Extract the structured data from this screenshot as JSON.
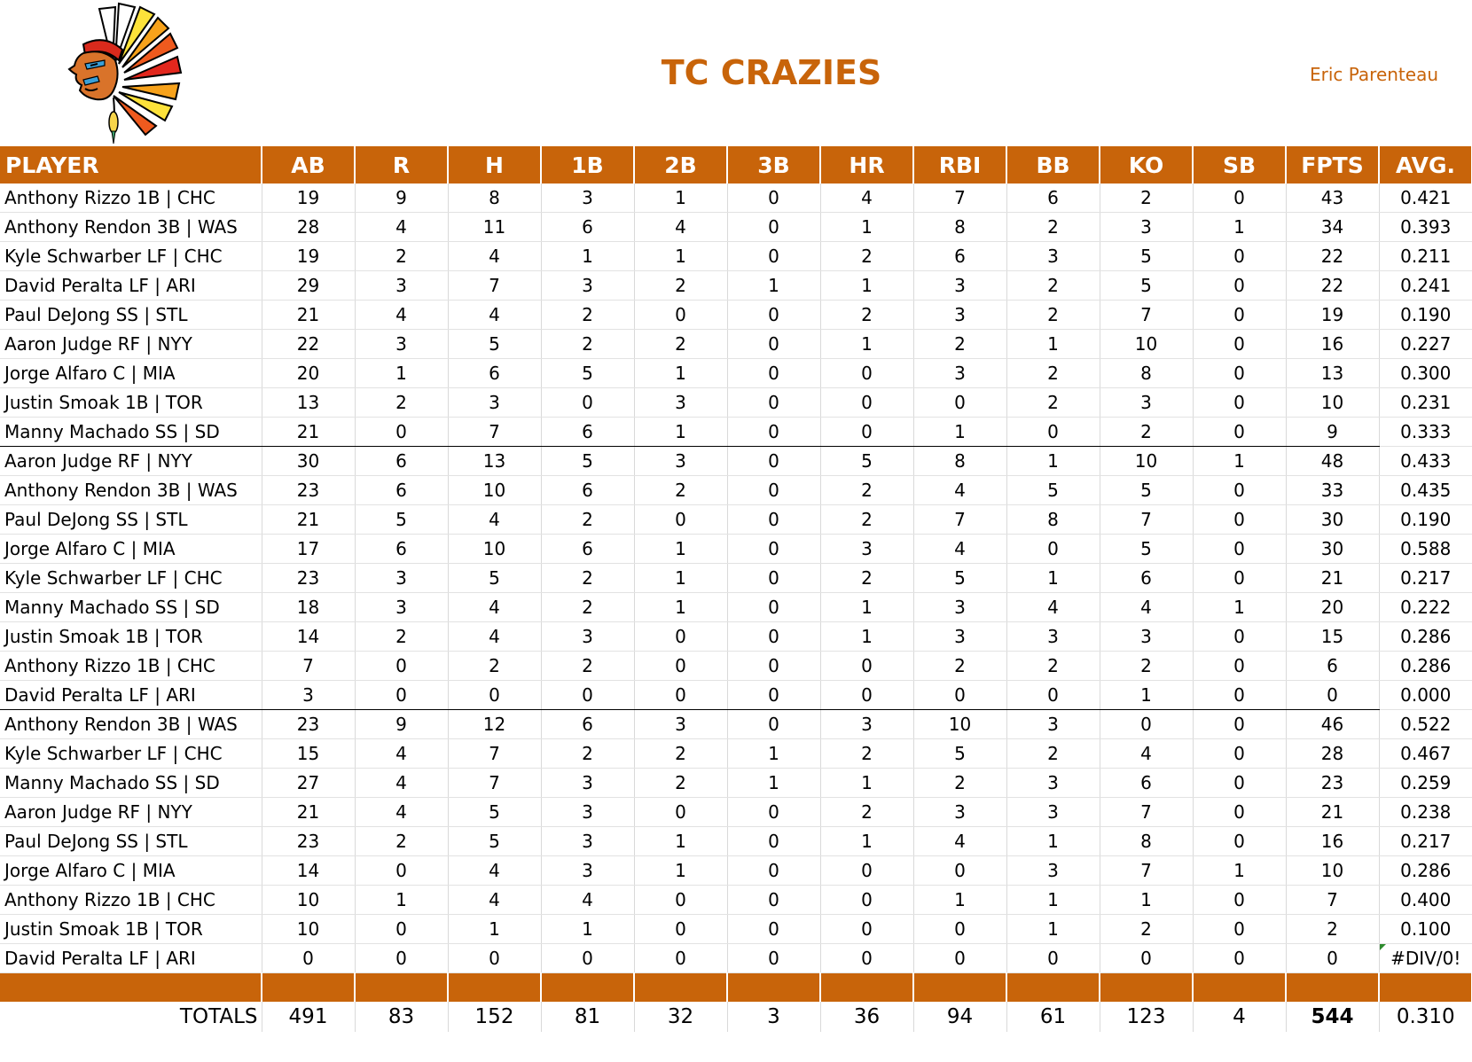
{
  "header": {
    "title": "TC CRAZIES",
    "owner": "Eric Parenteau"
  },
  "columns": [
    "PLAYER",
    "AB",
    "R",
    "H",
    "1B",
    "2B",
    "3B",
    "HR",
    "RBI",
    "BB",
    "KO",
    "SB",
    "FPTS",
    "AVG."
  ],
  "rows": [
    {
      "player": "Anthony Rizzo 1B | CHC",
      "ab": "19",
      "r": "9",
      "h": "8",
      "b1": "3",
      "b2": "1",
      "b3": "0",
      "hr": "4",
      "rbi": "7",
      "bb": "6",
      "ko": "2",
      "sb": "0",
      "fpts": "43",
      "avg": "0.421"
    },
    {
      "player": "Anthony Rendon 3B | WAS",
      "ab": "28",
      "r": "4",
      "h": "11",
      "b1": "6",
      "b2": "4",
      "b3": "0",
      "hr": "1",
      "rbi": "8",
      "bb": "2",
      "ko": "3",
      "sb": "1",
      "fpts": "34",
      "avg": "0.393"
    },
    {
      "player": "Kyle Schwarber LF | CHC",
      "ab": "19",
      "r": "2",
      "h": "4",
      "b1": "1",
      "b2": "1",
      "b3": "0",
      "hr": "2",
      "rbi": "6",
      "bb": "3",
      "ko": "5",
      "sb": "0",
      "fpts": "22",
      "avg": "0.211"
    },
    {
      "player": "David Peralta LF | ARI",
      "ab": "29",
      "r": "3",
      "h": "7",
      "b1": "3",
      "b2": "2",
      "b3": "1",
      "hr": "1",
      "rbi": "3",
      "bb": "2",
      "ko": "5",
      "sb": "0",
      "fpts": "22",
      "avg": "0.241"
    },
    {
      "player": "Paul DeJong SS | STL",
      "ab": "21",
      "r": "4",
      "h": "4",
      "b1": "2",
      "b2": "0",
      "b3": "0",
      "hr": "2",
      "rbi": "3",
      "bb": "2",
      "ko": "7",
      "sb": "0",
      "fpts": "19",
      "avg": "0.190"
    },
    {
      "player": "Aaron Judge RF | NYY",
      "ab": "22",
      "r": "3",
      "h": "5",
      "b1": "2",
      "b2": "2",
      "b3": "0",
      "hr": "1",
      "rbi": "2",
      "bb": "1",
      "ko": "10",
      "sb": "0",
      "fpts": "16",
      "avg": "0.227"
    },
    {
      "player": "Jorge Alfaro C | MIA",
      "ab": "20",
      "r": "1",
      "h": "6",
      "b1": "5",
      "b2": "1",
      "b3": "0",
      "hr": "0",
      "rbi": "3",
      "bb": "2",
      "ko": "8",
      "sb": "0",
      "fpts": "13",
      "avg": "0.300"
    },
    {
      "player": "Justin Smoak 1B | TOR",
      "ab": "13",
      "r": "2",
      "h": "3",
      "b1": "0",
      "b2": "3",
      "b3": "0",
      "hr": "0",
      "rbi": "0",
      "bb": "2",
      "ko": "3",
      "sb": "0",
      "fpts": "10",
      "avg": "0.231"
    },
    {
      "player": "Manny Machado SS | SD",
      "ab": "21",
      "r": "0",
      "h": "7",
      "b1": "6",
      "b2": "1",
      "b3": "0",
      "hr": "0",
      "rbi": "1",
      "bb": "0",
      "ko": "2",
      "sb": "0",
      "fpts": "9",
      "avg": "0.333",
      "group_end": true
    },
    {
      "player": "Aaron Judge RF | NYY",
      "ab": "30",
      "r": "6",
      "h": "13",
      "b1": "5",
      "b2": "3",
      "b3": "0",
      "hr": "5",
      "rbi": "8",
      "bb": "1",
      "ko": "10",
      "sb": "1",
      "fpts": "48",
      "avg": "0.433"
    },
    {
      "player": "Anthony Rendon 3B | WAS",
      "ab": "23",
      "r": "6",
      "h": "10",
      "b1": "6",
      "b2": "2",
      "b3": "0",
      "hr": "2",
      "rbi": "4",
      "bb": "5",
      "ko": "5",
      "sb": "0",
      "fpts": "33",
      "avg": "0.435"
    },
    {
      "player": "Paul DeJong SS | STL",
      "ab": "21",
      "r": "5",
      "h": "4",
      "b1": "2",
      "b2": "0",
      "b3": "0",
      "hr": "2",
      "rbi": "7",
      "bb": "8",
      "ko": "7",
      "sb": "0",
      "fpts": "30",
      "avg": "0.190"
    },
    {
      "player": "Jorge Alfaro C | MIA",
      "ab": "17",
      "r": "6",
      "h": "10",
      "b1": "6",
      "b2": "1",
      "b3": "0",
      "hr": "3",
      "rbi": "4",
      "bb": "0",
      "ko": "5",
      "sb": "0",
      "fpts": "30",
      "avg": "0.588"
    },
    {
      "player": "Kyle Schwarber LF | CHC",
      "ab": "23",
      "r": "3",
      "h": "5",
      "b1": "2",
      "b2": "1",
      "b3": "0",
      "hr": "2",
      "rbi": "5",
      "bb": "1",
      "ko": "6",
      "sb": "0",
      "fpts": "21",
      "avg": "0.217"
    },
    {
      "player": "Manny Machado SS | SD",
      "ab": "18",
      "r": "3",
      "h": "4",
      "b1": "2",
      "b2": "1",
      "b3": "0",
      "hr": "1",
      "rbi": "3",
      "bb": "4",
      "ko": "4",
      "sb": "1",
      "fpts": "20",
      "avg": "0.222"
    },
    {
      "player": "Justin Smoak 1B | TOR",
      "ab": "14",
      "r": "2",
      "h": "4",
      "b1": "3",
      "b2": "0",
      "b3": "0",
      "hr": "1",
      "rbi": "3",
      "bb": "3",
      "ko": "3",
      "sb": "0",
      "fpts": "15",
      "avg": "0.286"
    },
    {
      "player": "Anthony Rizzo 1B | CHC",
      "ab": "7",
      "r": "0",
      "h": "2",
      "b1": "2",
      "b2": "0",
      "b3": "0",
      "hr": "0",
      "rbi": "2",
      "bb": "2",
      "ko": "2",
      "sb": "0",
      "fpts": "6",
      "avg": "0.286"
    },
    {
      "player": "David Peralta LF | ARI",
      "ab": "3",
      "r": "0",
      "h": "0",
      "b1": "0",
      "b2": "0",
      "b3": "0",
      "hr": "0",
      "rbi": "0",
      "bb": "0",
      "ko": "1",
      "sb": "0",
      "fpts": "0",
      "avg": "0.000",
      "group_end": true
    },
    {
      "player": "Anthony Rendon 3B | WAS",
      "ab": "23",
      "r": "9",
      "h": "12",
      "b1": "6",
      "b2": "3",
      "b3": "0",
      "hr": "3",
      "rbi": "10",
      "bb": "3",
      "ko": "0",
      "sb": "0",
      "fpts": "46",
      "avg": "0.522"
    },
    {
      "player": "Kyle Schwarber LF | CHC",
      "ab": "15",
      "r": "4",
      "h": "7",
      "b1": "2",
      "b2": "2",
      "b3": "1",
      "hr": "2",
      "rbi": "5",
      "bb": "2",
      "ko": "4",
      "sb": "0",
      "fpts": "28",
      "avg": "0.467"
    },
    {
      "player": "Manny Machado SS | SD",
      "ab": "27",
      "r": "4",
      "h": "7",
      "b1": "3",
      "b2": "2",
      "b3": "1",
      "hr": "1",
      "rbi": "2",
      "bb": "3",
      "ko": "6",
      "sb": "0",
      "fpts": "23",
      "avg": "0.259"
    },
    {
      "player": "Aaron Judge RF | NYY",
      "ab": "21",
      "r": "4",
      "h": "5",
      "b1": "3",
      "b2": "0",
      "b3": "0",
      "hr": "2",
      "rbi": "3",
      "bb": "3",
      "ko": "7",
      "sb": "0",
      "fpts": "21",
      "avg": "0.238"
    },
    {
      "player": "Paul DeJong SS | STL",
      "ab": "23",
      "r": "2",
      "h": "5",
      "b1": "3",
      "b2": "1",
      "b3": "0",
      "hr": "1",
      "rbi": "4",
      "bb": "1",
      "ko": "8",
      "sb": "0",
      "fpts": "16",
      "avg": "0.217"
    },
    {
      "player": "Jorge Alfaro C | MIA",
      "ab": "14",
      "r": "0",
      "h": "4",
      "b1": "3",
      "b2": "1",
      "b3": "0",
      "hr": "0",
      "rbi": "0",
      "bb": "3",
      "ko": "7",
      "sb": "1",
      "fpts": "10",
      "avg": "0.286"
    },
    {
      "player": "Anthony Rizzo 1B | CHC",
      "ab": "10",
      "r": "1",
      "h": "4",
      "b1": "4",
      "b2": "0",
      "b3": "0",
      "hr": "0",
      "rbi": "1",
      "bb": "1",
      "ko": "1",
      "sb": "0",
      "fpts": "7",
      "avg": "0.400"
    },
    {
      "player": "Justin Smoak 1B | TOR",
      "ab": "10",
      "r": "0",
      "h": "1",
      "b1": "1",
      "b2": "0",
      "b3": "0",
      "hr": "0",
      "rbi": "0",
      "bb": "1",
      "ko": "2",
      "sb": "0",
      "fpts": "2",
      "avg": "0.100"
    },
    {
      "player": "David Peralta LF | ARI",
      "ab": "0",
      "r": "0",
      "h": "0",
      "b1": "0",
      "b2": "0",
      "b3": "0",
      "hr": "0",
      "rbi": "0",
      "bb": "0",
      "ko": "0",
      "sb": "0",
      "fpts": "0",
      "avg": "#DIV/0!",
      "error": true
    }
  ],
  "totals": {
    "label": "TOTALS",
    "ab": "491",
    "r": "83",
    "h": "152",
    "b1": "81",
    "b2": "32",
    "b3": "3",
    "hr": "36",
    "rbi": "94",
    "bb": "61",
    "ko": "123",
    "sb": "4",
    "fpts": "544",
    "avg": "0.310"
  },
  "colors": {
    "accent": "#C8640A",
    "header_text": "#FFFFFF",
    "error_marker": "#2E8B2E"
  },
  "logo": {
    "icon": "chief-headdress-logo"
  }
}
